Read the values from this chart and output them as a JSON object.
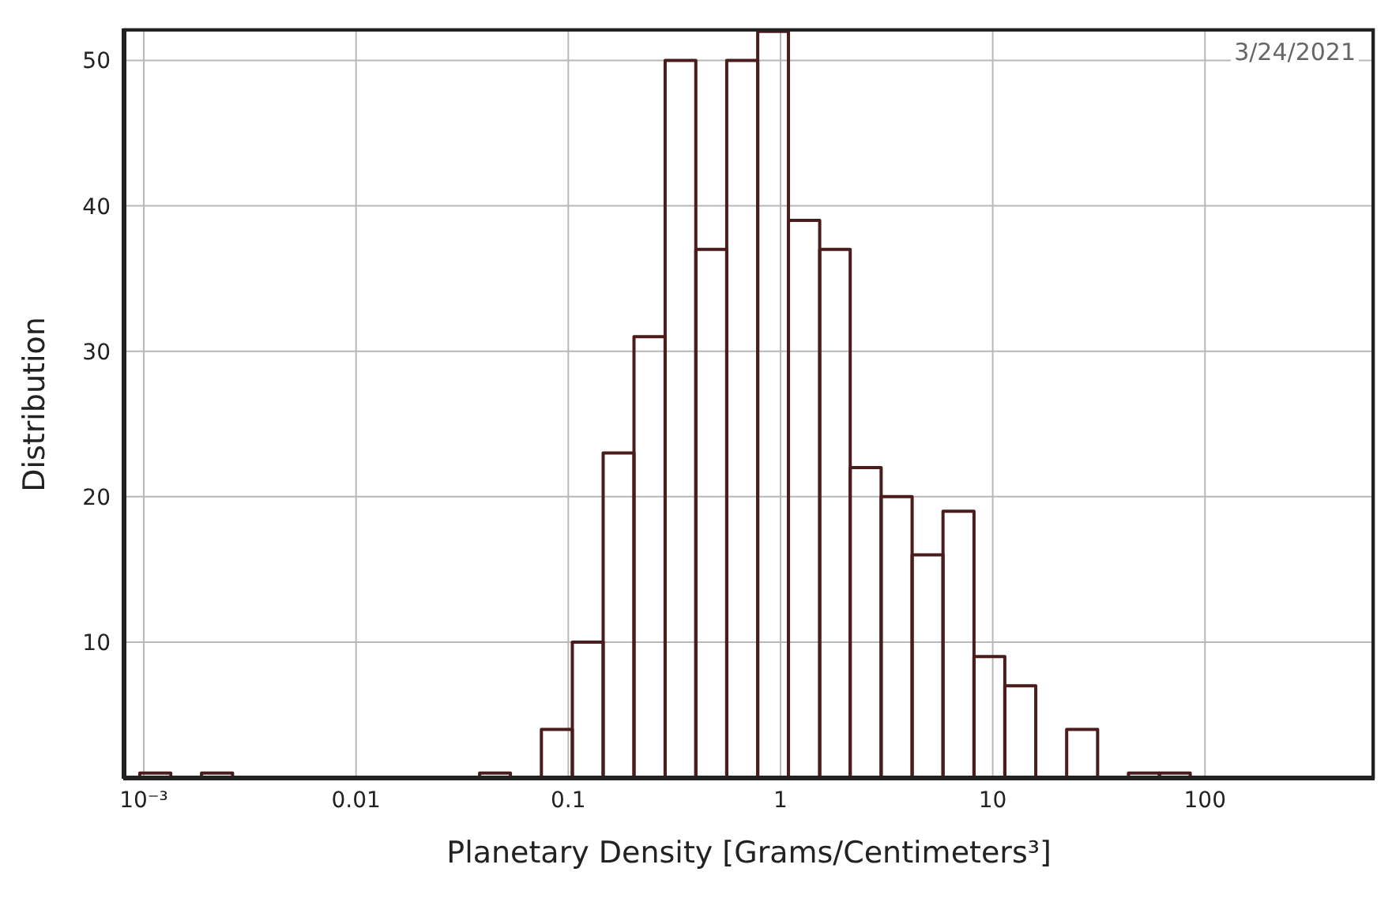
{
  "chart_data": {
    "type": "histogram",
    "xlabel": "Planetary Density [Grams/Centimeters³]",
    "ylabel": "Distribution",
    "annotations": [
      "3/24/2021"
    ],
    "bins": [
      0.000957,
      0.00134,
      0.00187,
      0.00262,
      0.0382,
      0.0534,
      0.0747,
      0.1045,
      0.146,
      0.204,
      0.286,
      0.399,
      0.558,
      0.781,
      1.09,
      1.53,
      2.13,
      2.98,
      4.17,
      5.83,
      8.16,
      11.4,
      15.95,
      22.3,
      31.2,
      43.6,
      61,
      85.2
    ],
    "values": [
      1,
      null,
      1,
      null,
      1,
      null,
      4,
      10,
      23,
      31,
      50,
      37,
      50,
      52,
      39,
      37,
      22,
      20,
      16,
      19,
      9,
      7,
      null,
      4,
      null,
      1,
      1
    ],
    "color": "#4a1c1c",
    "log": "x",
    "xlim": [
      0.0008,
      630
    ],
    "xticks": [
      {
        "value": 0.001,
        "label": "10⁻³"
      },
      0.01,
      0.1,
      1,
      10,
      100
    ],
    "ylim": [
      0.6,
      52.2
    ],
    "yticks": [
      10,
      20,
      30,
      40,
      50
    ],
    "grid": true
  }
}
